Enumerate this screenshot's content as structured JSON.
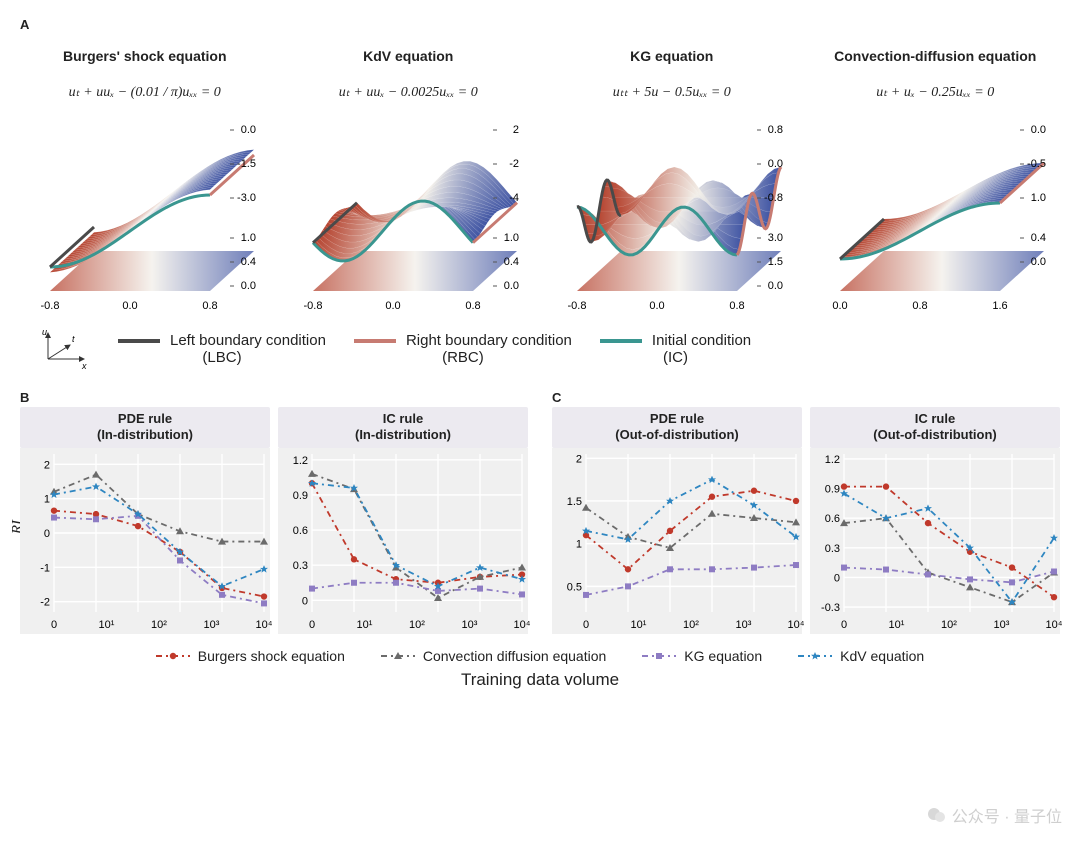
{
  "panel_labels": {
    "A": "A",
    "B": "B",
    "C": "C"
  },
  "columns_a": [
    {
      "title": "Burgers' shock equation",
      "equation": "uₜ + uuₓ − (0.01 / π)uₓₓ = 0",
      "z_ticks": [
        "0.0",
        "-1.5",
        "-3.0",
        "1.0",
        "0.4",
        "0.0"
      ],
      "x_ticks": [
        "-0.8",
        "0.0",
        "0.8"
      ],
      "x_range": [
        -1,
        1
      ]
    },
    {
      "title": "KdV equation",
      "equation": "uₜ + uuₓ − 0.0025uₓₓ = 0",
      "z_ticks": [
        "2",
        "-2",
        "-4",
        "1.0",
        "0.4",
        "0.0"
      ],
      "x_ticks": [
        "-0.8",
        "0.0",
        "0.8"
      ],
      "x_range": [
        -1,
        1
      ]
    },
    {
      "title": "KG equation",
      "equation": "uₜₜ + 5u − 0.5uₓₓ = 0",
      "z_ticks": [
        "0.8",
        "0.0",
        "-0.8",
        "3.0",
        "1.5",
        "0.0"
      ],
      "x_ticks": [
        "-0.8",
        "0.0",
        "0.8"
      ],
      "x_range": [
        -1,
        1
      ]
    },
    {
      "title": "Convection-diffusion equation",
      "equation": "uₜ + uₓ − 0.25uₓₓ = 0",
      "z_ticks": [
        "0.0",
        "-0.5",
        "1.0",
        "0.4",
        "0.0"
      ],
      "x_ticks": [
        "0.0",
        "0.8",
        "1.6"
      ],
      "x_range": [
        0,
        2
      ]
    }
  ],
  "legend_a": {
    "lbc": {
      "label_top": "Left boundary condition",
      "label_bot": "(LBC)",
      "color": "#4a4a4a"
    },
    "rbc": {
      "label_top": "Right boundary condition",
      "label_bot": "(RBC)",
      "color": "#c77b72"
    },
    "ic": {
      "label_top": "Initial condition",
      "label_bot": "(IC)",
      "color": "#3a9690"
    },
    "axes": {
      "u": "u",
      "t": "t",
      "x": "x"
    }
  },
  "x_axis_label": "Training data volume",
  "y_axis_label": "RI",
  "x_ticks": [
    "0",
    "10¹",
    "10²",
    "10³",
    "10⁴"
  ],
  "series_meta": {
    "burgers": {
      "label": "Burgers shock equation",
      "color": "#c0392b",
      "marker": "circle"
    },
    "convdiff": {
      "label": "Convection diffusion equation",
      "color": "#6b6b6b",
      "marker": "triangle"
    },
    "kg": {
      "label": "KG equation",
      "color": "#8e7cc3",
      "marker": "square"
    },
    "kdv": {
      "label": "KdV equation",
      "color": "#2e86c1",
      "marker": "star"
    }
  },
  "charts": {
    "B_pde": {
      "title": "PDE rule\n(In-distribution)",
      "ylim": [
        -2.3,
        2.3
      ],
      "ytick_step": 1,
      "data": {
        "burgers": [
          0.65,
          0.55,
          0.2,
          -0.55,
          -1.6,
          -1.85
        ],
        "convdiff": [
          1.2,
          1.7,
          0.55,
          0.05,
          -0.25,
          -0.25
        ],
        "kg": [
          0.45,
          0.4,
          0.5,
          -0.8,
          -1.8,
          -2.05
        ],
        "kdv": [
          1.12,
          1.35,
          0.55,
          -0.55,
          -1.55,
          -1.05
        ]
      }
    },
    "B_ic": {
      "title": "IC rule\n(In-distribution)",
      "ylim": [
        -0.1,
        1.25
      ],
      "ytick_step": 0.3,
      "data": {
        "burgers": [
          1.0,
          0.35,
          0.18,
          0.15,
          0.2,
          0.22
        ],
        "convdiff": [
          1.08,
          0.95,
          0.28,
          0.02,
          0.2,
          0.28
        ],
        "kg": [
          0.1,
          0.15,
          0.15,
          0.08,
          0.1,
          0.05
        ],
        "kdv": [
          1.0,
          0.96,
          0.3,
          0.12,
          0.28,
          0.18
        ]
      }
    },
    "C_pde": {
      "title": "PDE rule\n(Out-of-distribution)",
      "ylim": [
        0.2,
        2.05
      ],
      "ytick_step": 0.5,
      "data": {
        "burgers": [
          1.1,
          0.7,
          1.15,
          1.55,
          1.62,
          1.5
        ],
        "convdiff": [
          1.42,
          1.08,
          0.95,
          1.35,
          1.3,
          1.25
        ],
        "kg": [
          0.4,
          0.5,
          0.7,
          0.7,
          0.72,
          0.75
        ],
        "kdv": [
          1.15,
          1.05,
          1.5,
          1.75,
          1.45,
          1.08
        ]
      }
    },
    "C_ic": {
      "title": "IC rule\n(Out-of-distribution)",
      "ylim": [
        -0.35,
        1.25
      ],
      "ytick_step": 0.3,
      "data": {
        "burgers": [
          0.92,
          0.92,
          0.55,
          0.26,
          0.1,
          -0.2
        ],
        "convdiff": [
          0.55,
          0.6,
          0.05,
          -0.1,
          -0.25,
          0.05
        ],
        "kg": [
          0.1,
          0.08,
          0.03,
          -0.02,
          -0.05,
          0.06
        ],
        "kdv": [
          0.85,
          0.6,
          0.7,
          0.3,
          -0.25,
          0.4
        ]
      }
    }
  },
  "style": {
    "plot_bg": "#f0f0f0",
    "title_bg": "#eceaf0",
    "grid_color": "#ffffff",
    "font_tick": 11,
    "line_width": 1.8,
    "dash": "6 4 2 4",
    "surface_colors": {
      "low": "#3f54a3",
      "mid": "#f2efe9",
      "high": "#b5432f"
    }
  },
  "watermark": "公众号 · 量子位"
}
